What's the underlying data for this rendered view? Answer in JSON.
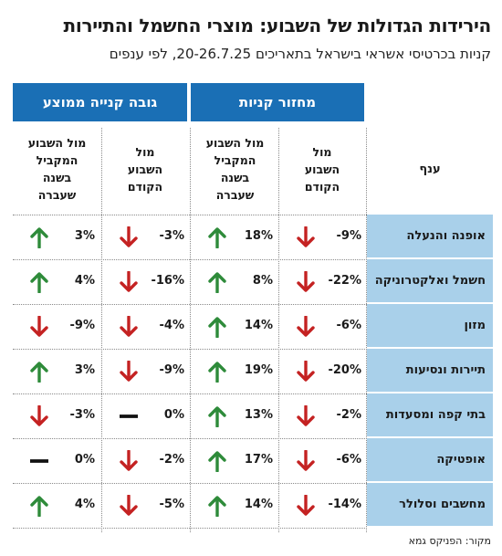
{
  "title": "הירידות הגדולות של השבוע: מוצרי החשמל והתיירות",
  "subtitle": "קניות בכרטיסי אשראי בישראל בתאריכים 20-26.7.25, לפי ענפים",
  "groups": {
    "turnover": "מחזור קניות",
    "avg_purchase": "גובה קנייה ממוצע"
  },
  "columns": {
    "branch": "ענף",
    "vs_prev_week": "מול\nהשבוע\nהקודם",
    "vs_parallel_week": "מול השבוע\nהמקביל\nבשנה\nשעברה"
  },
  "colors": {
    "up": "#2e8b3a",
    "down": "#c42222",
    "flat": "#111111",
    "header_blue": "#1a6fb5",
    "label_bg": "#a9d0ea"
  },
  "rows": [
    {
      "branch": "אופנה והנעלה",
      "turn_prev": "-9%",
      "turn_prev_dir": "down",
      "turn_year": "18%",
      "turn_year_dir": "up",
      "avg_prev": "-3%",
      "avg_prev_dir": "down",
      "avg_year": "3%",
      "avg_year_dir": "up"
    },
    {
      "branch": "חשמל ואלקטרוניקה",
      "turn_prev": "-22%",
      "turn_prev_dir": "down",
      "turn_year": "8%",
      "turn_year_dir": "up",
      "avg_prev": "-16%",
      "avg_prev_dir": "down",
      "avg_year": "4%",
      "avg_year_dir": "up"
    },
    {
      "branch": "מזון",
      "turn_prev": "-6%",
      "turn_prev_dir": "down",
      "turn_year": "14%",
      "turn_year_dir": "up",
      "avg_prev": "-4%",
      "avg_prev_dir": "down",
      "avg_year": "-9%",
      "avg_year_dir": "down"
    },
    {
      "branch": "תיירות ונסיעות",
      "turn_prev": "-20%",
      "turn_prev_dir": "down",
      "turn_year": "19%",
      "turn_year_dir": "up",
      "avg_prev": "-9%",
      "avg_prev_dir": "down",
      "avg_year": "3%",
      "avg_year_dir": "up"
    },
    {
      "branch": "בתי קפה ומסעדות",
      "turn_prev": "-2%",
      "turn_prev_dir": "down",
      "turn_year": "13%",
      "turn_year_dir": "up",
      "avg_prev": "0%",
      "avg_prev_dir": "flat",
      "avg_year": "-3%",
      "avg_year_dir": "down"
    },
    {
      "branch": "אופטיקה",
      "turn_prev": "-6%",
      "turn_prev_dir": "down",
      "turn_year": "17%",
      "turn_year_dir": "up",
      "avg_prev": "-2%",
      "avg_prev_dir": "down",
      "avg_year": "0%",
      "avg_year_dir": "flat"
    },
    {
      "branch": "מחשבים וסלולר",
      "turn_prev": "-14%",
      "turn_prev_dir": "down",
      "turn_year": "14%",
      "turn_year_dir": "up",
      "avg_prev": "-5%",
      "avg_prev_dir": "down",
      "avg_year": "4%",
      "avg_year_dir": "up"
    }
  ],
  "source": "מקור: הפניקס גמא"
}
